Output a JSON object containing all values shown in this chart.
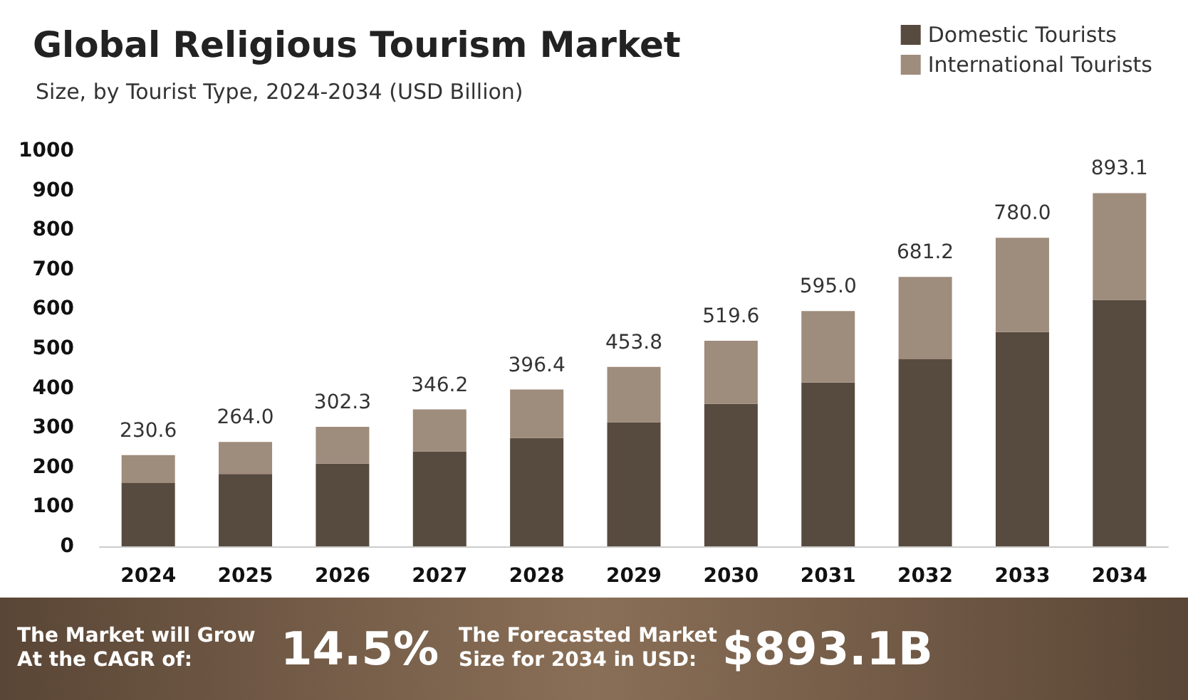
{
  "chart_data": {
    "type": "bar",
    "title": "Global Religious Tourism Market",
    "subtitle": "Size, by Tourist Type, 2024-2034 (USD Billion)",
    "categories": [
      "2024",
      "2025",
      "2026",
      "2027",
      "2028",
      "2029",
      "2030",
      "2031",
      "2032",
      "2033",
      "2034"
    ],
    "series": [
      {
        "name": "Domestic Tourists",
        "color": "#574a3f",
        "values": [
          160,
          183,
          209,
          240,
          274,
          314,
          360,
          414,
          473,
          542,
          623
        ]
      },
      {
        "name": "International Tourists",
        "color": "#9e8c7c",
        "values": [
          70.6,
          81.0,
          93.3,
          106.2,
          122.4,
          139.8,
          159.6,
          181.0,
          208.2,
          238.0,
          270.1
        ]
      }
    ],
    "stacked": true,
    "totals": [
      "230.6",
      "264.0",
      "302.3",
      "346.2",
      "396.4",
      "453.8",
      "519.6",
      "595.0",
      "681.2",
      "780.0",
      "893.1"
    ],
    "ylim": [
      0,
      1000
    ],
    "yticks": [
      0,
      100,
      200,
      300,
      400,
      500,
      600,
      700,
      800,
      900,
      1000
    ],
    "grid": false,
    "legend": "top right",
    "annotations": [
      "The Market will Grow At the CAGR of:",
      "14.5%",
      "The Forecasted Market Size for 2034 in USD:",
      "$893.1B"
    ]
  }
}
